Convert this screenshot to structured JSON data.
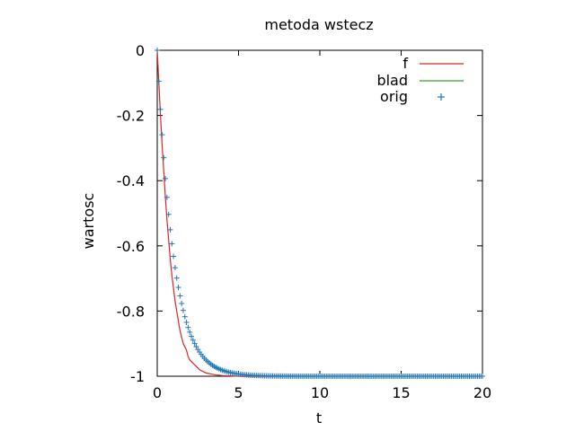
{
  "chart_data": {
    "type": "line",
    "title": "metoda wstecz",
    "xlabel": "t",
    "ylabel": "wartosc",
    "xlim": [
      0,
      20
    ],
    "ylim": [
      -1,
      0
    ],
    "xticks": [
      0,
      5,
      10,
      15,
      20
    ],
    "xtick_labels": [
      "0",
      "5",
      "10",
      "15",
      "20"
    ],
    "yticks": [
      0,
      -0.2,
      -0.4,
      -0.6,
      -0.8,
      -1
    ],
    "ytick_labels": [
      "0",
      "-0.2",
      "-0.4",
      "-0.6",
      "-0.8",
      "-1"
    ],
    "grid": false,
    "legend_position": "top-right",
    "series": [
      {
        "name": "f",
        "style": "line",
        "color": "#d62728",
        "x": [
          0,
          0.1,
          0.2,
          0.3,
          0.4,
          0.5,
          0.6,
          0.7,
          0.8,
          0.9,
          1.0,
          1.1,
          1.2,
          1.3,
          1.4,
          1.5,
          1.6,
          1.7,
          1.8,
          1.9,
          2.0,
          2.2,
          2.4,
          2.6,
          2.8,
          3.0,
          3.3,
          3.6,
          4.0,
          5,
          6,
          8,
          10,
          12,
          14,
          16,
          18,
          20
        ],
        "y": [
          0,
          -0.1,
          -0.2,
          -0.29,
          -0.37,
          -0.45,
          -0.52,
          -0.58,
          -0.64,
          -0.69,
          -0.73,
          -0.77,
          -0.8,
          -0.83,
          -0.86,
          -0.88,
          -0.9,
          -0.91,
          -0.92,
          -0.94,
          -0.95,
          -0.96,
          -0.97,
          -0.98,
          -0.985,
          -0.99,
          -0.993,
          -0.996,
          -0.998,
          -1,
          -1,
          -1,
          -1,
          -1,
          -1,
          -1,
          -1,
          -1
        ]
      },
      {
        "name": "blad",
        "style": "line",
        "color": "#2ca02c",
        "x": [],
        "y": []
      },
      {
        "name": "orig",
        "style": "points",
        "marker": "+",
        "color": "#1f77b4",
        "x_start": 0,
        "x_step": 0.1,
        "x_end": 20,
        "model": "y = -(1 - exp(-t))",
        "note_values": "sampled every 0.1 from t=0 to t=20; y decays from 0 to -1"
      }
    ]
  }
}
